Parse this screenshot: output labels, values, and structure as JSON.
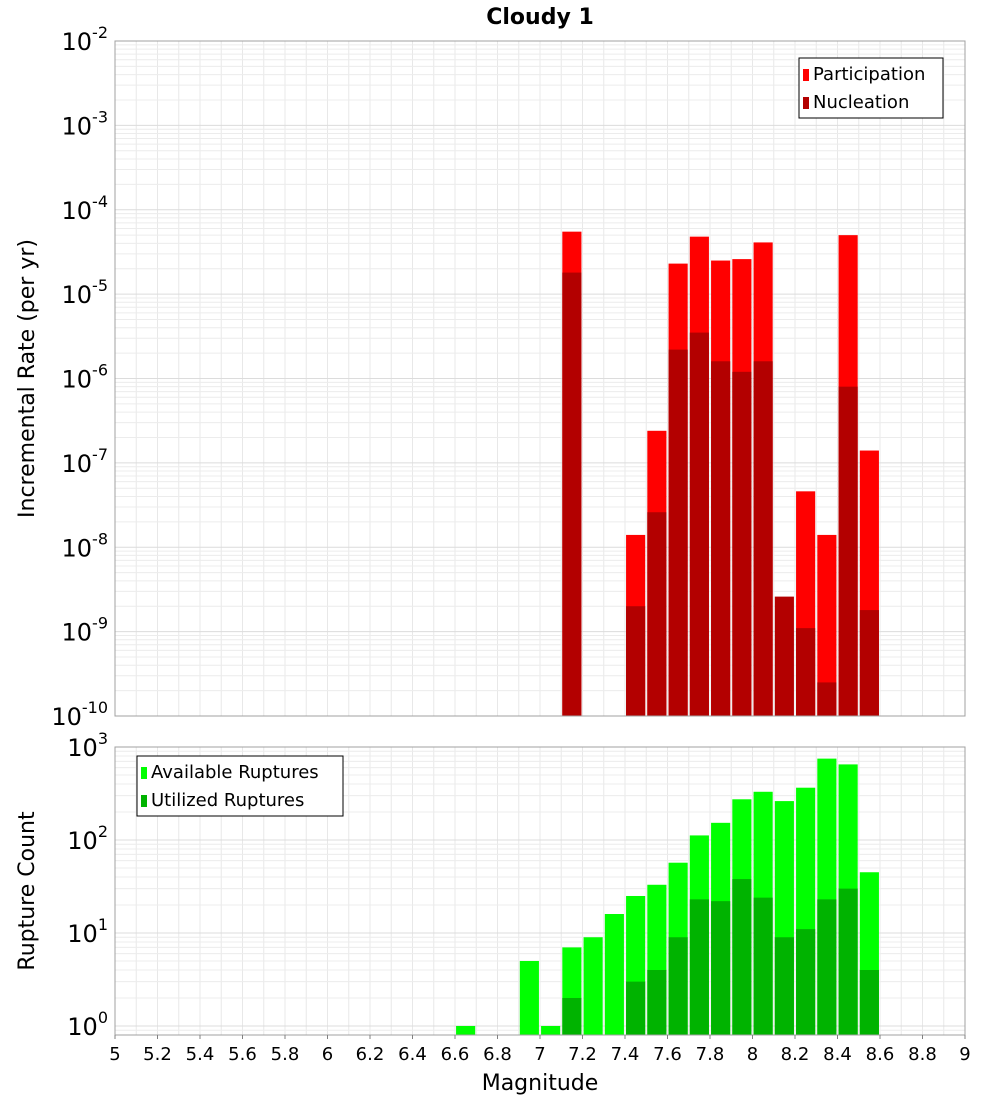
{
  "chart_data": [
    {
      "type": "bar",
      "title": "Cloudy 1",
      "xlabel": "",
      "ylabel": "Incremental Rate (per yr)",
      "yscale": "log",
      "ylim": [
        1e-10,
        0.01
      ],
      "xlim": [
        5,
        9
      ],
      "y_tick_labels": [
        {
          "base": "10",
          "exp": "-10"
        },
        {
          "base": "10",
          "exp": "-9"
        },
        {
          "base": "10",
          "exp": "-8"
        },
        {
          "base": "10",
          "exp": "-7"
        },
        {
          "base": "10",
          "exp": "-6"
        },
        {
          "base": "10",
          "exp": "-5"
        },
        {
          "base": "10",
          "exp": "-4"
        },
        {
          "base": "10",
          "exp": "-3"
        },
        {
          "base": "10",
          "exp": "-2"
        }
      ],
      "legend_position": "top-right",
      "bar_width": 0.09,
      "series": [
        {
          "name": "Participation",
          "color": "#ff0000",
          "x": [
            7.15,
            7.45,
            7.55,
            7.65,
            7.75,
            7.85,
            7.95,
            8.05,
            8.25,
            8.35,
            8.45,
            8.55
          ],
          "values": [
            5.5e-05,
            1.4e-08,
            2.4e-07,
            2.3e-05,
            4.8e-05,
            2.5e-05,
            2.6e-05,
            4.1e-05,
            4.6e-08,
            1.4e-08,
            5e-05,
            1.4e-07
          ]
        },
        {
          "name": "Nucleation",
          "color": "#b30000",
          "x": [
            7.15,
            7.45,
            7.55,
            7.65,
            7.75,
            7.85,
            7.95,
            8.05,
            8.15,
            8.25,
            8.35,
            8.45,
            8.55
          ],
          "values": [
            1.8e-05,
            2e-09,
            2.6e-08,
            2.2e-06,
            3.5e-06,
            1.6e-06,
            1.2e-06,
            1.6e-06,
            2.6e-09,
            1.1e-09,
            2.5e-10,
            8e-07,
            1.8e-09
          ]
        }
      ]
    },
    {
      "type": "bar",
      "title": "",
      "xlabel": "Magnitude",
      "ylabel": "Rupture Count",
      "yscale": "log",
      "ylim": [
        0.8,
        1000
      ],
      "xlim": [
        5,
        9
      ],
      "x_ticks": [
        "5",
        "5.2",
        "5.4",
        "5.6",
        "5.8",
        "6",
        "6.2",
        "6.4",
        "6.6",
        "6.8",
        "7",
        "7.2",
        "7.4",
        "7.6",
        "7.8",
        "8",
        "8.2",
        "8.4",
        "8.6",
        "8.8",
        "9"
      ],
      "y_tick_labels": [
        {
          "base": "10",
          "exp": "0"
        },
        {
          "base": "10",
          "exp": "1"
        },
        {
          "base": "10",
          "exp": "2"
        },
        {
          "base": "10",
          "exp": "3"
        }
      ],
      "legend_position": "top-left",
      "bar_width": 0.09,
      "series": [
        {
          "name": "Available Ruptures",
          "color": "#00ff00",
          "x": [
            6.65,
            6.95,
            7.05,
            7.15,
            7.25,
            7.35,
            7.45,
            7.55,
            7.65,
            7.75,
            7.85,
            7.95,
            8.05,
            8.15,
            8.25,
            8.35,
            8.45,
            8.55
          ],
          "values": [
            1,
            5,
            1,
            7,
            9,
            16,
            25,
            33,
            57,
            112,
            153,
            274,
            330,
            262,
            365,
            750,
            650,
            45
          ]
        },
        {
          "name": "Utilized Ruptures",
          "color": "#00b300",
          "x": [
            7.15,
            7.45,
            7.55,
            7.65,
            7.75,
            7.85,
            7.95,
            8.05,
            8.15,
            8.25,
            8.35,
            8.45,
            8.55
          ],
          "values": [
            2,
            3,
            4,
            9,
            23,
            22,
            38,
            24,
            9,
            11,
            23,
            30,
            4
          ]
        }
      ]
    }
  ]
}
